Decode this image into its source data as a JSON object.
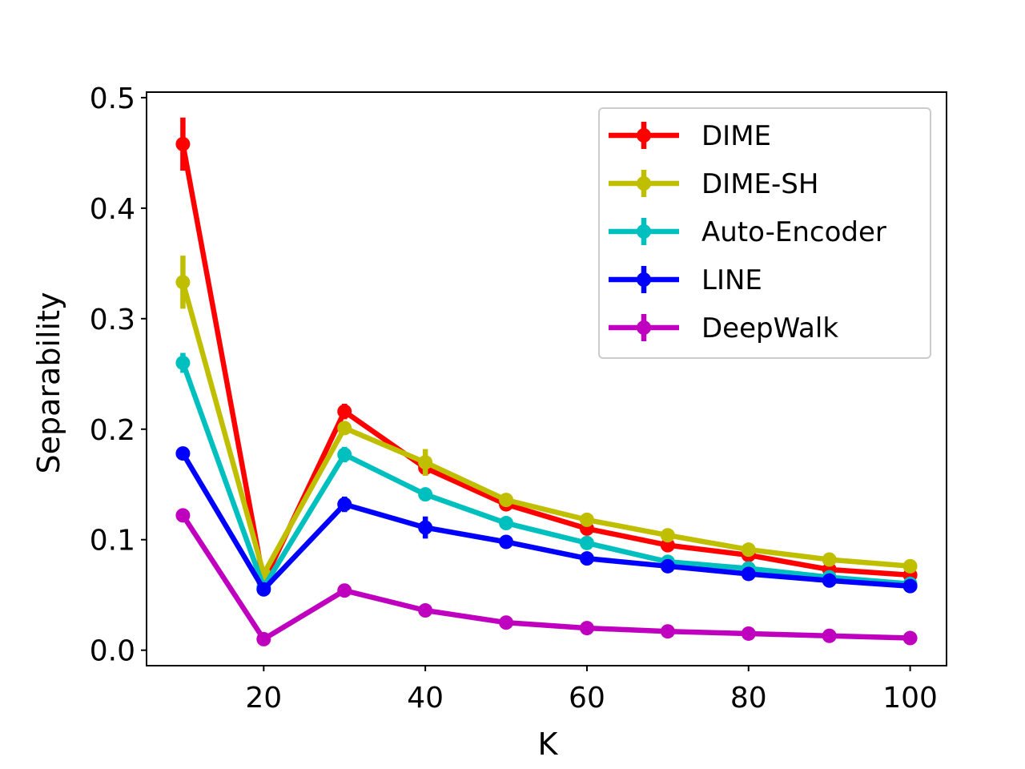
{
  "chart_data": {
    "type": "line",
    "title": "",
    "xlabel": "K",
    "ylabel": "Separability",
    "xlim": [
      5.5,
      104.5
    ],
    "ylim": [
      -0.014,
      0.505
    ],
    "grid": false,
    "legend_position": "top-right",
    "x": [
      10,
      20,
      30,
      40,
      50,
      60,
      70,
      80,
      90,
      100
    ],
    "x_ticks": [
      20,
      40,
      60,
      80,
      100
    ],
    "x_tick_labels": [
      "20",
      "40",
      "60",
      "80",
      "100"
    ],
    "y_ticks": [
      0.0,
      0.1,
      0.2,
      0.3,
      0.4,
      0.5
    ],
    "y_tick_labels": [
      "0.0",
      "0.1",
      "0.2",
      "0.3",
      "0.4",
      "0.5"
    ],
    "series": [
      {
        "name": "DIME",
        "color": "#ff0000",
        "values": [
          0.458,
          0.062,
          0.216,
          0.165,
          0.132,
          0.11,
          0.095,
          0.086,
          0.073,
          0.068
        ],
        "errors": [
          0.024,
          0.003,
          0.007,
          0.007,
          0.004,
          0.004,
          0.003,
          0.003,
          0.002,
          0.002
        ]
      },
      {
        "name": "DIME-SH",
        "color": "#bfbf00",
        "values": [
          0.333,
          0.069,
          0.201,
          0.17,
          0.136,
          0.118,
          0.104,
          0.091,
          0.082,
          0.076
        ],
        "errors": [
          0.024,
          0.003,
          0.006,
          0.012,
          0.005,
          0.004,
          0.003,
          0.003,
          0.002,
          0.002
        ]
      },
      {
        "name": "Auto-Encoder",
        "color": "#00bfbf",
        "values": [
          0.26,
          0.057,
          0.177,
          0.141,
          0.115,
          0.097,
          0.08,
          0.074,
          0.066,
          0.06
        ],
        "errors": [
          0.009,
          0.003,
          0.007,
          0.004,
          0.003,
          0.003,
          0.002,
          0.002,
          0.002,
          0.002
        ]
      },
      {
        "name": "LINE",
        "color": "#0000ff",
        "values": [
          0.178,
          0.055,
          0.132,
          0.111,
          0.098,
          0.083,
          0.076,
          0.069,
          0.063,
          0.058
        ],
        "errors": [
          0.005,
          0.002,
          0.007,
          0.01,
          0.003,
          0.002,
          0.002,
          0.002,
          0.002,
          0.002
        ]
      },
      {
        "name": "DeepWalk",
        "color": "#bf00bf",
        "values": [
          0.122,
          0.01,
          0.054,
          0.036,
          0.025,
          0.02,
          0.017,
          0.015,
          0.013,
          0.011
        ],
        "errors": [
          0.003,
          0.001,
          0.002,
          0.002,
          0.001,
          0.001,
          0.001,
          0.001,
          0.001,
          0.001
        ]
      }
    ]
  }
}
